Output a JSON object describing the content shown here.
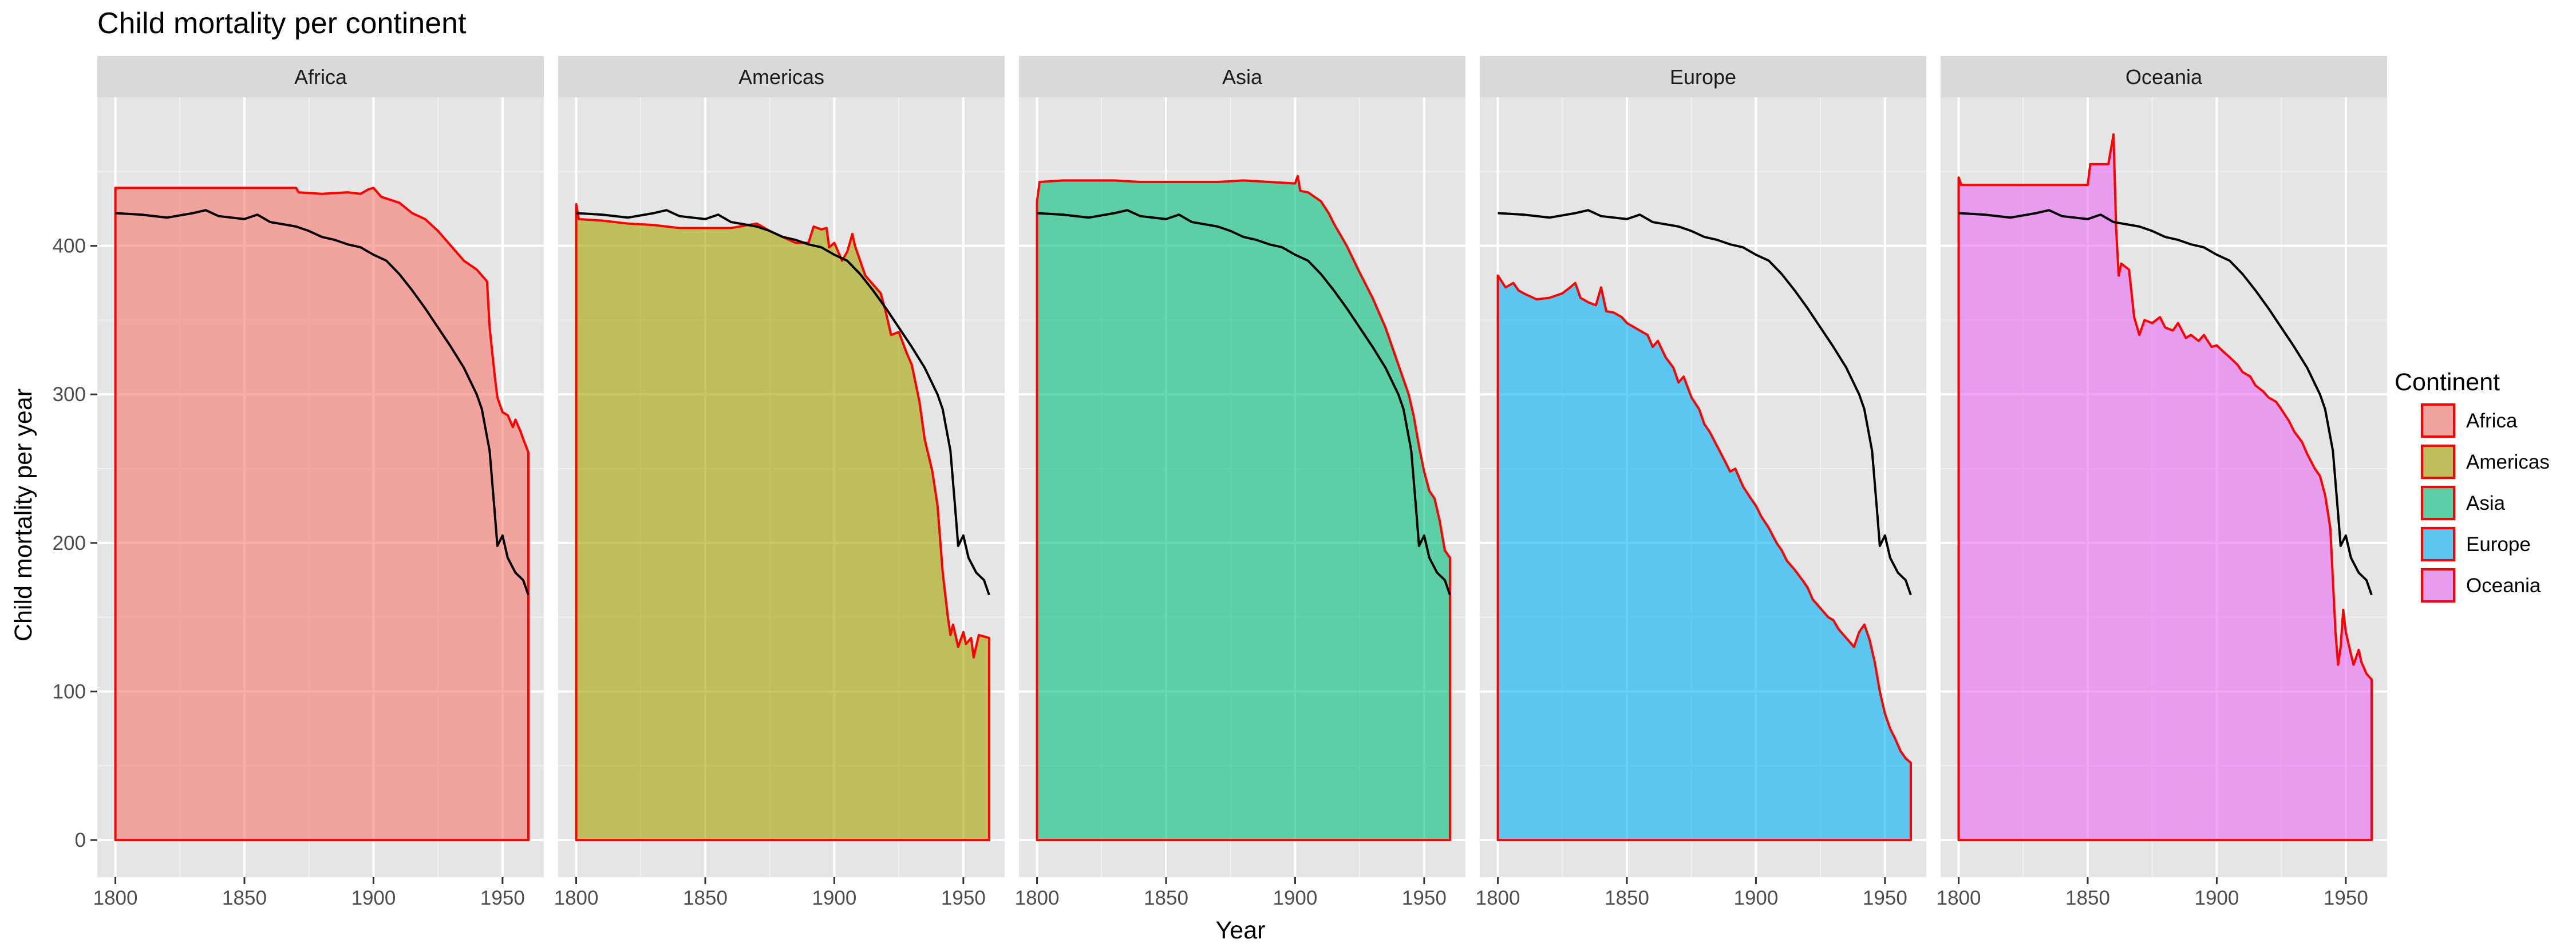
{
  "chart_data": {
    "type": "area",
    "title": "Child mortality per continent",
    "xlabel": "Year",
    "ylabel": "Child mortality per year",
    "xlim": [
      1793,
      1966
    ],
    "ylim": [
      -25,
      500
    ],
    "x_ticks": [
      1800,
      1850,
      1900,
      1950
    ],
    "y_ticks": [
      0,
      100,
      200,
      300,
      400
    ],
    "grid": true,
    "facets": [
      "Africa",
      "Americas",
      "Asia",
      "Europe",
      "Oceania"
    ],
    "legend": {
      "title": "Continent",
      "position": "right",
      "entries": [
        "Africa",
        "Americas",
        "Asia",
        "Europe",
        "Oceania"
      ]
    },
    "colors": {
      "Africa": "#F8766D",
      "Americas": "#A3A500",
      "Asia": "#00BF7D",
      "Europe": "#00B0F6",
      "Oceania": "#E76BF3",
      "outline": "#FF0000",
      "world_line": "#000000",
      "panel_bg": "#E5E5E5",
      "strip_bg": "#D9D9D9"
    },
    "world_line": [
      [
        1800,
        422
      ],
      [
        1810,
        421
      ],
      [
        1820,
        419
      ],
      [
        1830,
        422
      ],
      [
        1835,
        424
      ],
      [
        1840,
        420
      ],
      [
        1850,
        418
      ],
      [
        1855,
        421
      ],
      [
        1860,
        416
      ],
      [
        1870,
        413
      ],
      [
        1875,
        410
      ],
      [
        1880,
        406
      ],
      [
        1885,
        404
      ],
      [
        1890,
        401
      ],
      [
        1895,
        399
      ],
      [
        1900,
        394
      ],
      [
        1905,
        390
      ],
      [
        1910,
        381
      ],
      [
        1915,
        370
      ],
      [
        1920,
        358
      ],
      [
        1925,
        345
      ],
      [
        1930,
        332
      ],
      [
        1935,
        318
      ],
      [
        1940,
        300
      ],
      [
        1942,
        290
      ],
      [
        1945,
        262
      ],
      [
        1947,
        220
      ],
      [
        1948,
        198
      ],
      [
        1950,
        205
      ],
      [
        1952,
        190
      ],
      [
        1955,
        180
      ],
      [
        1958,
        175
      ],
      [
        1960,
        165
      ]
    ],
    "series": [
      {
        "name": "Africa",
        "points": [
          [
            1800,
            439
          ],
          [
            1870,
            439
          ],
          [
            1871,
            436
          ],
          [
            1880,
            435
          ],
          [
            1890,
            436
          ],
          [
            1895,
            435
          ],
          [
            1898,
            438
          ],
          [
            1900,
            439
          ],
          [
            1903,
            433
          ],
          [
            1910,
            429
          ],
          [
            1915,
            422
          ],
          [
            1920,
            418
          ],
          [
            1925,
            410
          ],
          [
            1930,
            400
          ],
          [
            1935,
            390
          ],
          [
            1940,
            384
          ],
          [
            1943,
            378
          ],
          [
            1944,
            376
          ],
          [
            1945,
            345
          ],
          [
            1947,
            312
          ],
          [
            1948,
            298
          ],
          [
            1950,
            288
          ],
          [
            1952,
            286
          ],
          [
            1954,
            278
          ],
          [
            1955,
            283
          ],
          [
            1957,
            275
          ],
          [
            1958,
            270
          ],
          [
            1960,
            261
          ]
        ]
      },
      {
        "name": "Americas",
        "points": [
          [
            1800,
            428
          ],
          [
            1801,
            418
          ],
          [
            1810,
            417
          ],
          [
            1820,
            415
          ],
          [
            1830,
            414
          ],
          [
            1840,
            412
          ],
          [
            1850,
            412
          ],
          [
            1860,
            412
          ],
          [
            1870,
            415
          ],
          [
            1875,
            410
          ],
          [
            1880,
            406
          ],
          [
            1885,
            402
          ],
          [
            1890,
            402
          ],
          [
            1892,
            413
          ],
          [
            1895,
            411
          ],
          [
            1897,
            412
          ],
          [
            1898,
            399
          ],
          [
            1900,
            402
          ],
          [
            1903,
            390
          ],
          [
            1905,
            396
          ],
          [
            1907,
            408
          ],
          [
            1908,
            400
          ],
          [
            1910,
            390
          ],
          [
            1912,
            380
          ],
          [
            1915,
            374
          ],
          [
            1918,
            368
          ],
          [
            1920,
            355
          ],
          [
            1922,
            340
          ],
          [
            1925,
            342
          ],
          [
            1928,
            328
          ],
          [
            1930,
            320
          ],
          [
            1933,
            295
          ],
          [
            1935,
            270
          ],
          [
            1938,
            248
          ],
          [
            1940,
            225
          ],
          [
            1942,
            180
          ],
          [
            1944,
            150
          ],
          [
            1945,
            138
          ],
          [
            1946,
            145
          ],
          [
            1948,
            130
          ],
          [
            1950,
            140
          ],
          [
            1951,
            132
          ],
          [
            1953,
            136
          ],
          [
            1954,
            123
          ],
          [
            1956,
            138
          ],
          [
            1960,
            136
          ]
        ]
      },
      {
        "name": "Asia",
        "points": [
          [
            1800,
            430
          ],
          [
            1801,
            443
          ],
          [
            1810,
            444
          ],
          [
            1830,
            444
          ],
          [
            1840,
            443
          ],
          [
            1860,
            443
          ],
          [
            1870,
            443
          ],
          [
            1880,
            444
          ],
          [
            1900,
            442
          ],
          [
            1901,
            447
          ],
          [
            1902,
            437
          ],
          [
            1905,
            436
          ],
          [
            1910,
            430
          ],
          [
            1913,
            422
          ],
          [
            1915,
            415
          ],
          [
            1920,
            400
          ],
          [
            1925,
            382
          ],
          [
            1930,
            365
          ],
          [
            1935,
            345
          ],
          [
            1940,
            320
          ],
          [
            1944,
            300
          ],
          [
            1946,
            285
          ],
          [
            1948,
            265
          ],
          [
            1950,
            248
          ],
          [
            1952,
            235
          ],
          [
            1954,
            230
          ],
          [
            1956,
            215
          ],
          [
            1958,
            195
          ],
          [
            1960,
            190
          ]
        ]
      },
      {
        "name": "Europe",
        "points": [
          [
            1800,
            380
          ],
          [
            1803,
            372
          ],
          [
            1806,
            375
          ],
          [
            1808,
            370
          ],
          [
            1810,
            368
          ],
          [
            1815,
            364
          ],
          [
            1820,
            365
          ],
          [
            1825,
            368
          ],
          [
            1828,
            372
          ],
          [
            1830,
            375
          ],
          [
            1832,
            365
          ],
          [
            1835,
            362
          ],
          [
            1838,
            360
          ],
          [
            1840,
            372
          ],
          [
            1842,
            356
          ],
          [
            1845,
            355
          ],
          [
            1848,
            352
          ],
          [
            1850,
            348
          ],
          [
            1853,
            345
          ],
          [
            1855,
            343
          ],
          [
            1858,
            340
          ],
          [
            1860,
            332
          ],
          [
            1862,
            336
          ],
          [
            1865,
            325
          ],
          [
            1868,
            318
          ],
          [
            1870,
            308
          ],
          [
            1872,
            312
          ],
          [
            1875,
            298
          ],
          [
            1878,
            290
          ],
          [
            1880,
            280
          ],
          [
            1882,
            275
          ],
          [
            1885,
            265
          ],
          [
            1888,
            255
          ],
          [
            1890,
            248
          ],
          [
            1892,
            250
          ],
          [
            1895,
            238
          ],
          [
            1898,
            230
          ],
          [
            1900,
            225
          ],
          [
            1902,
            218
          ],
          [
            1905,
            210
          ],
          [
            1908,
            200
          ],
          [
            1910,
            195
          ],
          [
            1912,
            188
          ],
          [
            1915,
            182
          ],
          [
            1918,
            175
          ],
          [
            1920,
            170
          ],
          [
            1922,
            162
          ],
          [
            1925,
            156
          ],
          [
            1928,
            150
          ],
          [
            1930,
            148
          ],
          [
            1932,
            142
          ],
          [
            1935,
            136
          ],
          [
            1938,
            130
          ],
          [
            1940,
            140
          ],
          [
            1942,
            145
          ],
          [
            1944,
            135
          ],
          [
            1946,
            120
          ],
          [
            1948,
            100
          ],
          [
            1950,
            85
          ],
          [
            1952,
            75
          ],
          [
            1954,
            68
          ],
          [
            1956,
            60
          ],
          [
            1958,
            55
          ],
          [
            1960,
            52
          ]
        ]
      },
      {
        "name": "Oceania",
        "points": [
          [
            1800,
            446
          ],
          [
            1801,
            441
          ],
          [
            1850,
            441
          ],
          [
            1851,
            455
          ],
          [
            1858,
            455
          ],
          [
            1860,
            475
          ],
          [
            1861,
            412
          ],
          [
            1862,
            380
          ],
          [
            1863,
            388
          ],
          [
            1866,
            384
          ],
          [
            1868,
            352
          ],
          [
            1870,
            340
          ],
          [
            1872,
            350
          ],
          [
            1875,
            348
          ],
          [
            1878,
            352
          ],
          [
            1880,
            345
          ],
          [
            1883,
            343
          ],
          [
            1885,
            348
          ],
          [
            1888,
            338
          ],
          [
            1890,
            340
          ],
          [
            1893,
            336
          ],
          [
            1895,
            340
          ],
          [
            1898,
            332
          ],
          [
            1900,
            333
          ],
          [
            1903,
            328
          ],
          [
            1905,
            325
          ],
          [
            1908,
            320
          ],
          [
            1910,
            315
          ],
          [
            1913,
            312
          ],
          [
            1915,
            306
          ],
          [
            1918,
            302
          ],
          [
            1920,
            298
          ],
          [
            1923,
            295
          ],
          [
            1925,
            290
          ],
          [
            1928,
            282
          ],
          [
            1930,
            275
          ],
          [
            1933,
            268
          ],
          [
            1935,
            260
          ],
          [
            1938,
            250
          ],
          [
            1940,
            245
          ],
          [
            1942,
            232
          ],
          [
            1944,
            210
          ],
          [
            1945,
            175
          ],
          [
            1946,
            140
          ],
          [
            1947,
            118
          ],
          [
            1948,
            130
          ],
          [
            1949,
            155
          ],
          [
            1950,
            140
          ],
          [
            1952,
            125
          ],
          [
            1953,
            118
          ],
          [
            1955,
            128
          ],
          [
            1956,
            120
          ],
          [
            1958,
            112
          ],
          [
            1960,
            108
          ]
        ]
      }
    ]
  }
}
